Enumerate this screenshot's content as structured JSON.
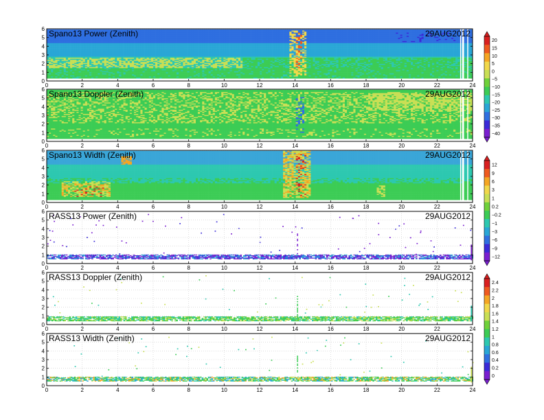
{
  "figure": {
    "x_ticks": [
      0,
      2,
      4,
      6,
      8,
      10,
      12,
      14,
      16,
      18,
      20,
      22,
      24
    ],
    "y_ticks": [
      0,
      1,
      2,
      3,
      4,
      5,
      6
    ]
  },
  "palettes": {
    "rainbow": [
      "#7a1fd0",
      "#3a2ad8",
      "#2f6fe0",
      "#29a6d6",
      "#2dc8b0",
      "#3ccc55",
      "#6fd13a",
      "#c9df55",
      "#f1d84a",
      "#f5a623",
      "#ef5a1f",
      "#d92020"
    ],
    "width": [
      "#3aa6d8",
      "#3ccc55",
      "#c9df55",
      "#f5a623",
      "#d92020"
    ]
  },
  "colorbars": [
    {
      "name": "power-doppler-colorbar",
      "labels": [
        "20",
        "15",
        "10",
        "5",
        "0",
        "−5",
        "−10",
        "−15",
        "−20",
        "−25",
        "−30",
        "−35",
        "−40"
      ]
    },
    {
      "name": "width-rass-power-colorbar",
      "labels": [
        "12",
        "9",
        "6",
        "3",
        "1",
        "0.2",
        "−0.2",
        "−1",
        "−3",
        "−6",
        "−9",
        "−12"
      ]
    },
    {
      "name": "rass-doppler-width-colorbar",
      "labels": [
        "2.4",
        "2.2",
        "2",
        "1.8",
        "1.6",
        "1.4",
        "1.2",
        "1",
        "0.8",
        "0.6",
        "0.4",
        "0.2",
        "0"
      ]
    }
  ],
  "chart_data": [
    {
      "type": "heatmap",
      "title": "Spano13 Power (Zenith)",
      "date": "29AUG2012",
      "xlim": [
        0,
        24
      ],
      "ylim": [
        0,
        6
      ],
      "style": "dense",
      "base_color": "#2dc8b0",
      "upper_color": "#29a6d6",
      "top_color": "#2f6fe0",
      "features": [
        {
          "x0": 0,
          "x1": 11,
          "y0": 1.4,
          "y1": 2.6,
          "color": "#c9df55",
          "density": 0.55
        },
        {
          "x0": 0,
          "x1": 24,
          "y0": 0.3,
          "y1": 1.4,
          "color": "#3ccc55",
          "density": 0.85
        },
        {
          "x0": 11,
          "x1": 24,
          "y0": 1.5,
          "y1": 2.6,
          "color": "#3ccc55",
          "density": 0.7
        },
        {
          "x0": 13.6,
          "x1": 14.6,
          "y0": 0.5,
          "y1": 5.8,
          "color": "#f1d84a",
          "density": 0.5
        },
        {
          "x0": 14,
          "x1": 14.3,
          "y0": 1.5,
          "y1": 5.5,
          "color": "#ef5a1f",
          "density": 0.3
        },
        {
          "x0": 19.5,
          "x1": 23,
          "y0": 4.5,
          "y1": 5.5,
          "color": "#3a2ad8",
          "density": 0.15
        }
      ],
      "gaps": [
        23.3,
        23.7
      ]
    },
    {
      "type": "heatmap",
      "title": "Spano13 Doppler (Zenith)",
      "date": "29AUG2012",
      "xlim": [
        0,
        24
      ],
      "ylim": [
        0,
        6
      ],
      "style": "dense",
      "base_color": "#3ccc55",
      "upper_color": "#3ccc55",
      "top_color": "#3ccc55",
      "features": [
        {
          "x0": 0,
          "x1": 24,
          "y0": 2,
          "y1": 5.6,
          "color": "#c9df55",
          "density": 0.35
        },
        {
          "x0": 18,
          "x1": 24,
          "y0": 3.5,
          "y1": 5.5,
          "color": "#c9df55",
          "density": 0.6
        },
        {
          "x0": 14,
          "x1": 14.4,
          "y0": 1,
          "y1": 5,
          "color": "#2f6fe0",
          "density": 0.35
        },
        {
          "x0": 0,
          "x1": 24,
          "y0": 0.5,
          "y1": 1.5,
          "color": "#c9df55",
          "density": 0.15
        }
      ],
      "gaps": [
        23.3,
        23.7
      ]
    },
    {
      "type": "heatmap",
      "title": "Spano13 Width (Zenith)",
      "date": "29AUG2012",
      "xlim": [
        0,
        24
      ],
      "ylim": [
        0,
        6
      ],
      "style": "dense",
      "base_color": "#3ccc55",
      "upper_color": "#2dc8b0",
      "top_color": "#3aa6d8",
      "features": [
        {
          "x0": 0,
          "x1": 24,
          "y0": 2.2,
          "y1": 4.2,
          "color": "#2dc8b0",
          "density": 0.6
        },
        {
          "x0": 0.8,
          "x1": 3.5,
          "y0": 0.6,
          "y1": 2.4,
          "color": "#c9df55",
          "density": 0.6
        },
        {
          "x0": 0.8,
          "x1": 3.5,
          "y0": 0.6,
          "y1": 2.2,
          "color": "#f5a623",
          "density": 0.25
        },
        {
          "x0": 1.5,
          "x1": 3.2,
          "y0": 0.6,
          "y1": 1.8,
          "color": "#d92020",
          "density": 0.12
        },
        {
          "x0": 4.2,
          "x1": 4.8,
          "y0": 4.3,
          "y1": 5.3,
          "color": "#f5a623",
          "density": 0.7
        },
        {
          "x0": 13.3,
          "x1": 14.8,
          "y0": 0.5,
          "y1": 5.9,
          "color": "#c9df55",
          "density": 0.6
        },
        {
          "x0": 13.3,
          "x1": 14.8,
          "y0": 0.5,
          "y1": 5.9,
          "color": "#f5a623",
          "density": 0.3
        },
        {
          "x0": 14,
          "x1": 14.6,
          "y0": 0.5,
          "y1": 5.5,
          "color": "#d92020",
          "density": 0.15
        },
        {
          "x0": 18.5,
          "x1": 19,
          "y0": 0.5,
          "y1": 1.9,
          "color": "#c9df55",
          "density": 0.6
        }
      ],
      "gaps": [
        23.3,
        23.7
      ]
    },
    {
      "type": "heatmap",
      "title": "RASS13 Power (Zenith)",
      "date": "29AUG2012",
      "xlim": [
        0,
        24
      ],
      "ylim": [
        0,
        6
      ],
      "style": "sparse",
      "band_y": [
        0.5,
        0.95
      ],
      "band_colors": [
        "#7a1fd0",
        "#7a1fd0",
        "#3a2ad8",
        "#2f6fe0",
        "#29a6d6"
      ],
      "scatter_count": 70,
      "scatter_colors": [
        "#7a1fd0",
        "#7a1fd0",
        "#3a2ad8"
      ]
    },
    {
      "type": "heatmap",
      "title": "RASS13 Doppler (Zenith)",
      "date": "29AUG2012",
      "xlim": [
        0,
        24
      ],
      "ylim": [
        0,
        6
      ],
      "style": "sparse",
      "band_y": [
        0.4,
        0.85
      ],
      "band_colors": [
        "#3ccc55",
        "#3ccc55",
        "#6fd13a",
        "#2dc8b0",
        "#c9df55"
      ],
      "scatter_count": 55,
      "scatter_colors": [
        "#3ccc55",
        "#2dc8b0",
        "#c9df55"
      ]
    },
    {
      "type": "heatmap",
      "title": "RASS13 Width (Zenith)",
      "date": "29AUG2012",
      "xlim": [
        0,
        24
      ],
      "ylim": [
        0,
        6
      ],
      "style": "sparse",
      "band_y": [
        0.5,
        1.0
      ],
      "band_colors": [
        "#3ccc55",
        "#2dc8b0",
        "#29a6d6",
        "#3ccc55",
        "#c9df55",
        "#f5a623"
      ],
      "scatter_count": 55,
      "scatter_colors": [
        "#3ccc55",
        "#c9df55",
        "#2dc8b0"
      ]
    }
  ]
}
